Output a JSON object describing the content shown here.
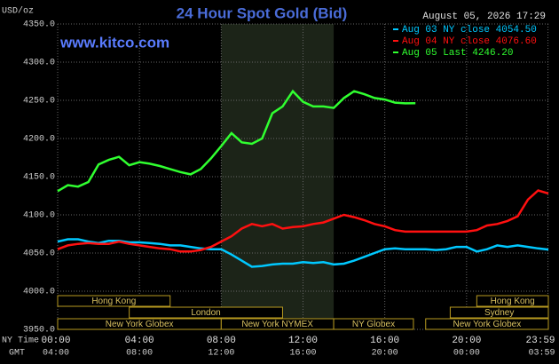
{
  "chart_data": {
    "type": "line",
    "title": "24 Hour Spot Gold (Bid)",
    "subtitle": "www.kitco.com",
    "timestamp": "August 05, 2026 17:29",
    "y_label": "USD/oz",
    "x_axis_labels": [
      "NY Time",
      "GMT"
    ],
    "x": [
      0,
      0.5,
      1,
      1.5,
      2,
      2.5,
      3,
      3.5,
      4,
      4.5,
      5,
      5.5,
      6,
      6.5,
      7,
      7.5,
      8,
      8.5,
      9,
      9.5,
      10,
      10.5,
      11,
      11.5,
      12,
      12.5,
      13,
      13.5,
      14,
      14.5,
      15,
      15.5,
      16,
      16.5,
      17,
      17.5,
      18,
      18.5,
      19,
      19.5,
      20,
      20.5,
      21,
      21.5,
      22,
      22.5,
      23,
      23.5,
      24
    ],
    "series": [
      {
        "name": "Aug 03 NY close 4054.50",
        "color": "#00c8ff",
        "values": [
          4065,
          4068,
          4068,
          4065,
          4063,
          4066,
          4066,
          4064,
          4064,
          4063,
          4062,
          4060,
          4060,
          4058,
          4056,
          4055,
          4055,
          4048,
          4040,
          4032,
          4033,
          4035,
          4036,
          4036,
          4038,
          4037,
          4038,
          4035,
          4036,
          4040,
          4045,
          4050,
          4055,
          4056,
          4055,
          4055,
          4055,
          4054,
          4055,
          4058,
          4058,
          4052,
          4055,
          4060,
          4058,
          4060,
          4058,
          4056,
          4054.5
        ]
      },
      {
        "name": "Aug 04 NY close 4076.60",
        "color": "#ff1010",
        "values": [
          4055,
          4060,
          4062,
          4063,
          4062,
          4062,
          4065,
          4062,
          4060,
          4058,
          4056,
          4055,
          4052,
          4052,
          4054,
          4058,
          4065,
          4072,
          4082,
          4088,
          4085,
          4088,
          4082,
          4084,
          4085,
          4088,
          4090,
          4095,
          4100,
          4097,
          4093,
          4088,
          4085,
          4080,
          4078,
          4078,
          4078,
          4078,
          4078,
          4078,
          4078,
          4080,
          4086,
          4088,
          4092,
          4098,
          4120,
          4132,
          4128
        ]
      },
      {
        "name": "Aug 05 Last 4246.20",
        "color": "#30ff30",
        "values": [
          4131,
          4139,
          4137,
          4143,
          4166,
          4172,
          4176,
          4165,
          4169,
          4167,
          4164,
          4160,
          4156,
          4153,
          4160,
          4174,
          4190,
          4207,
          4195,
          4193,
          4200,
          4233,
          4242,
          4262,
          4248,
          4242,
          4242,
          4240,
          4253,
          4262,
          4258,
          4253,
          4251,
          4247,
          4246,
          4246.2,
          null,
          null,
          null,
          null,
          null,
          null,
          null,
          null,
          null,
          null,
          null,
          null,
          null
        ]
      }
    ],
    "xlim": [
      0,
      24
    ],
    "xticks": [
      {
        "value": 0,
        "label": "00:00"
      },
      {
        "value": 4,
        "label": "04:00"
      },
      {
        "value": 8,
        "label": "08:00"
      },
      {
        "value": 12,
        "label": "12:00"
      },
      {
        "value": 16,
        "label": "16:00"
      },
      {
        "value": 20,
        "label": "20:00"
      },
      {
        "value": 23.98,
        "label": "23:59"
      }
    ],
    "gmt_labels": [
      "04:00",
      "08:00",
      "12:00",
      "16:00",
      "20:00",
      "00:00",
      "03:59"
    ],
    "ylim": [
      3950,
      4350
    ],
    "yticks": [
      {
        "value": 3950,
        "label": "3950.0"
      },
      {
        "value": 4000,
        "label": "4000.0"
      },
      {
        "value": 4050,
        "label": "4050.0"
      },
      {
        "value": 4100,
        "label": "4100.0"
      },
      {
        "value": 4150,
        "label": "4150.0"
      },
      {
        "value": 4200,
        "label": "4200.0"
      },
      {
        "value": 4250,
        "label": "4250.0"
      },
      {
        "value": 4300,
        "label": "4300.0"
      },
      {
        "value": 4350,
        "label": "4350.0"
      }
    ],
    "grid": true,
    "sessions": [
      {
        "name": "Hong Kong",
        "start": 0,
        "end": 5.5
      },
      {
        "name": "London",
        "start": 3.5,
        "end": 11
      },
      {
        "name": "New York Globex",
        "start": 0,
        "end": 8
      },
      {
        "name": "New York NYMEX",
        "start": 8,
        "end": 13.5
      },
      {
        "name": "NY Globex",
        "start": 13.5,
        "end": 17.4
      },
      {
        "name": "Hong Kong",
        "start": 20.5,
        "end": 24
      },
      {
        "name": "Sydney",
        "start": 19.2,
        "end": 24
      },
      {
        "name": "New York Globex",
        "start": 18,
        "end": 24
      }
    ]
  }
}
